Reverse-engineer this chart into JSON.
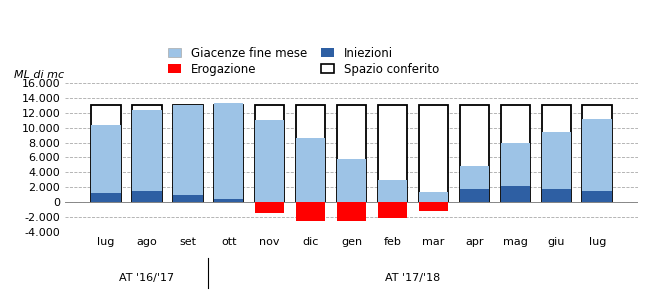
{
  "categories": [
    "lug",
    "ago",
    "set",
    "ott",
    "nov",
    "dic",
    "gen",
    "feb",
    "mar",
    "apr",
    "mag",
    "giu",
    "lug"
  ],
  "group_labels": [
    "AT '16/'17",
    "AT '17/'18"
  ],
  "giacenze": [
    9200,
    10900,
    12100,
    12900,
    11000,
    8600,
    5800,
    2900,
    1300,
    3100,
    5700,
    7600,
    9700
  ],
  "iniezioni": [
    1200,
    1500,
    900,
    400,
    0,
    0,
    0,
    0,
    0,
    1700,
    2200,
    1800,
    1500
  ],
  "erogazione": [
    0,
    0,
    0,
    0,
    -1500,
    -2500,
    -2600,
    -2200,
    -1200,
    0,
    0,
    0,
    0
  ],
  "spazio_conferito_top": [
    13000,
    13000,
    13000,
    13000,
    13000,
    13000,
    13000,
    13000,
    13000,
    13000,
    13000,
    13000,
    13000
  ],
  "ylim": [
    -4000,
    16000
  ],
  "yticks": [
    -4000,
    -2000,
    0,
    2000,
    4000,
    6000,
    8000,
    10000,
    12000,
    14000,
    16000
  ],
  "ylabel": "ML di mc",
  "color_giacenze": "#9DC3E6",
  "color_iniezioni": "#2E5FA3",
  "color_erogazione": "#FF0000",
  "legend_items": [
    "Giacenze fine mese",
    "Erogazione",
    "Iniezioni",
    "Spazio conferito"
  ],
  "axis_fontsize": 8,
  "legend_fontsize": 8.5,
  "bar_width": 0.72
}
